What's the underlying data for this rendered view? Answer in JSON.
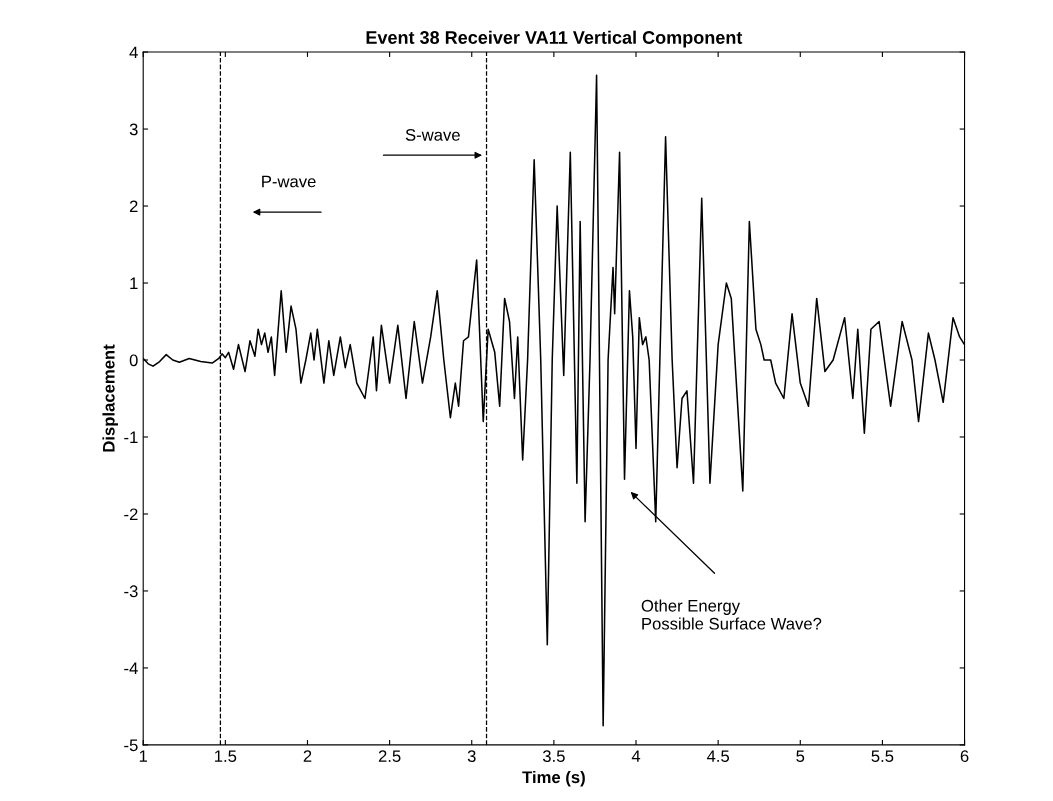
{
  "chart_data": {
    "type": "line",
    "title": "Event 38 Receiver VA11 Vertical Component",
    "xlabel": "Time (s)",
    "ylabel": "Displacement",
    "xlim": [
      1,
      6
    ],
    "xticks": [
      1,
      1.5,
      2,
      2.5,
      3,
      3.5,
      4,
      4.5,
      5,
      5.5,
      6
    ],
    "ylim": [
      -5,
      4
    ],
    "yticks": [
      -5,
      -4,
      -3,
      -2,
      -1,
      0,
      1,
      2,
      3,
      4
    ],
    "grid": false,
    "legend": false,
    "marker": "none",
    "line_style": "solid",
    "ref_lines": [
      {
        "axis": "x",
        "value": 1.47,
        "line_style": "dashed",
        "color": "#000000"
      },
      {
        "axis": "x",
        "value": 3.09,
        "line_style": "dashed",
        "color": "#000000"
      }
    ],
    "annotations": [
      "P-wave",
      {
        "text": "S-wave",
        "x": 3.08,
        "y": 2.66
      },
      "Other Energy\nPossible Surface Wave?"
    ],
    "series": [
      {
        "color": "#000000",
        "x": [
          1.0,
          1.03,
          1.06,
          1.1,
          1.14,
          1.18,
          1.22,
          1.28,
          1.35,
          1.42,
          1.46,
          1.48,
          1.5,
          1.52,
          1.55,
          1.58,
          1.62,
          1.65,
          1.68,
          1.7,
          1.72,
          1.74,
          1.76,
          1.78,
          1.8,
          1.84,
          1.87,
          1.9,
          1.93,
          1.96,
          1.99,
          2.02,
          2.04,
          2.06,
          2.1,
          2.13,
          2.16,
          2.2,
          2.23,
          2.26,
          2.3,
          2.35,
          2.4,
          2.42,
          2.45,
          2.5,
          2.55,
          2.6,
          2.65,
          2.7,
          2.75,
          2.79,
          2.83,
          2.87,
          2.9,
          2.92,
          2.95,
          2.98,
          3.03,
          3.07,
          3.1,
          3.14,
          3.17,
          3.2,
          3.23,
          3.26,
          3.28,
          3.31,
          3.34,
          3.38,
          3.42,
          3.46,
          3.49,
          3.52,
          3.56,
          3.6,
          3.64,
          3.66,
          3.69,
          3.72,
          3.76,
          3.8,
          3.83,
          3.86,
          3.87,
          3.9,
          3.93,
          3.96,
          3.98,
          4.0,
          4.02,
          4.04,
          4.06,
          4.08,
          4.12,
          4.18,
          4.22,
          4.25,
          4.28,
          4.31,
          4.35,
          4.4,
          4.45,
          4.5,
          4.55,
          4.58,
          4.65,
          4.69,
          4.73,
          4.76,
          4.78,
          4.82,
          4.85,
          4.9,
          4.95,
          5.0,
          5.05,
          5.1,
          5.15,
          5.2,
          5.27,
          5.32,
          5.35,
          5.39,
          5.43,
          5.48,
          5.55,
          5.62,
          5.68,
          5.72,
          5.78,
          5.82,
          5.87,
          5.93,
          5.97,
          6.0
        ],
        "values": [
          0.02,
          -0.05,
          -0.08,
          -0.02,
          0.07,
          0.0,
          -0.03,
          0.02,
          -0.02,
          -0.04,
          0.02,
          0.08,
          0.03,
          0.1,
          -0.12,
          0.2,
          -0.15,
          0.25,
          0.05,
          0.4,
          0.2,
          0.35,
          0.1,
          0.3,
          -0.2,
          0.9,
          0.1,
          0.7,
          0.4,
          -0.3,
          0.0,
          0.35,
          0.0,
          0.4,
          -0.3,
          0.25,
          -0.2,
          0.3,
          -0.1,
          0.2,
          -0.3,
          -0.5,
          0.3,
          -0.4,
          0.45,
          -0.3,
          0.45,
          -0.5,
          0.5,
          -0.3,
          0.3,
          0.9,
          0.0,
          -0.75,
          -0.3,
          -0.6,
          0.25,
          0.3,
          1.3,
          -0.8,
          0.4,
          0.1,
          -0.6,
          0.8,
          0.5,
          -0.5,
          0.3,
          -1.3,
          0.0,
          2.6,
          0.0,
          -3.7,
          0.0,
          2.0,
          -0.2,
          2.7,
          -1.6,
          1.8,
          -2.1,
          0.0,
          3.7,
          -4.75,
          0.0,
          1.2,
          0.6,
          2.7,
          -1.55,
          0.9,
          0.3,
          -1.15,
          0.55,
          0.2,
          0.3,
          0.0,
          -2.1,
          2.9,
          0.0,
          -1.4,
          -0.5,
          -0.4,
          -1.6,
          2.1,
          -1.6,
          0.2,
          1.0,
          0.8,
          -1.7,
          1.8,
          0.4,
          0.2,
          0.0,
          0.0,
          -0.3,
          -0.5,
          0.6,
          -0.3,
          -0.6,
          0.8,
          -0.15,
          0.0,
          0.55,
          -0.5,
          0.4,
          -0.95,
          0.4,
          0.5,
          -0.6,
          0.5,
          0.0,
          -0.8,
          0.35,
          0.0,
          -0.55,
          0.55,
          0.3,
          0.2
        ]
      }
    ]
  }
}
